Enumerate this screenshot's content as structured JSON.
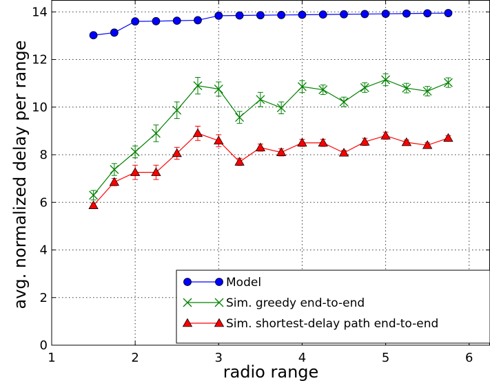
{
  "chart_data": {
    "type": "line",
    "title": "",
    "xlabel": "radio range",
    "ylabel": "avg. normalized delay per range",
    "xlim": [
      1,
      6.25
    ],
    "ylim": [
      0,
      14.5
    ],
    "xticks": [
      1,
      2,
      3,
      4,
      5,
      6
    ],
    "yticks": [
      0,
      2,
      4,
      6,
      8,
      10,
      12,
      14
    ],
    "grid": true,
    "legend_position": "lower-right",
    "x": [
      1.5,
      1.75,
      2.0,
      2.25,
      2.5,
      2.75,
      3.0,
      3.25,
      3.5,
      3.75,
      4.0,
      4.25,
      4.5,
      4.75,
      5.0,
      5.25,
      5.5,
      5.75
    ],
    "series": [
      {
        "name": "Model",
        "color": "#0000ff",
        "marker": "circle",
        "values": [
          13.02,
          13.13,
          13.6,
          13.61,
          13.63,
          13.65,
          13.84,
          13.85,
          13.86,
          13.87,
          13.88,
          13.89,
          13.9,
          13.91,
          13.92,
          13.93,
          13.94,
          13.95
        ],
        "errors": [
          0,
          0,
          0,
          0,
          0,
          0,
          0,
          0,
          0,
          0,
          0,
          0,
          0,
          0,
          0,
          0,
          0,
          0
        ]
      },
      {
        "name": "Sim. greedy end-to-end",
        "color": "#008000",
        "marker": "x",
        "values": [
          6.3,
          7.38,
          8.12,
          8.9,
          9.87,
          10.9,
          10.76,
          9.57,
          10.32,
          9.97,
          10.86,
          10.73,
          10.22,
          10.82,
          11.15,
          10.8,
          10.67,
          11.03
        ],
        "errors": [
          0.2,
          0.25,
          0.25,
          0.35,
          0.35,
          0.35,
          0.3,
          0.25,
          0.3,
          0.25,
          0.25,
          0.2,
          0.2,
          0.2,
          0.25,
          0.2,
          0.2,
          0.2
        ]
      },
      {
        "name": "Sim. shortest-delay path end-to-end",
        "color": "#ff0000",
        "marker": "triangle",
        "values": [
          5.87,
          6.85,
          7.26,
          7.26,
          8.06,
          8.9,
          8.59,
          7.7,
          8.3,
          8.1,
          8.5,
          8.5,
          8.08,
          8.54,
          8.8,
          8.52,
          8.4,
          8.7
        ],
        "errors": [
          0.1,
          0.15,
          0.3,
          0.3,
          0.25,
          0.3,
          0.25,
          0.15,
          0.15,
          0.15,
          0.15,
          0.15,
          0.1,
          0.15,
          0.15,
          0.1,
          0.1,
          0.1
        ]
      }
    ]
  }
}
